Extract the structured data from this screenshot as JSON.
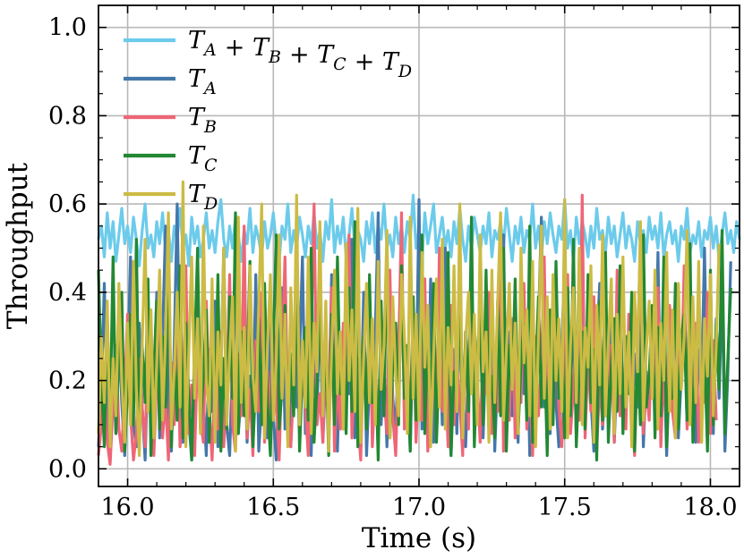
{
  "chart_data": {
    "type": "line",
    "title": "",
    "xlabel": "Time (s)",
    "ylabel": "Throughput",
    "xlim": [
      15.9,
      18.1
    ],
    "ylim": [
      -0.04,
      1.05
    ],
    "xticks": [
      16.0,
      16.5,
      17.0,
      17.5,
      18.0
    ],
    "xtick_labels": [
      "16.0",
      "16.5",
      "17.0",
      "17.5",
      "18.0"
    ],
    "yticks": [
      0.0,
      0.2,
      0.4,
      0.6,
      0.8,
      1.0
    ],
    "ytick_labels": [
      "0.0",
      "0.2",
      "0.4",
      "0.6",
      "0.8",
      "1.0"
    ],
    "grid": true,
    "legend_position": "top-left",
    "sample_step": 0.01,
    "series": [
      {
        "name": "T_A + T_B + T_C + T_D",
        "legend": {
          "base": [
            "T",
            "+ T",
            "+ T",
            "+ T"
          ],
          "subs": [
            "A",
            "B",
            "C",
            "D"
          ]
        },
        "color": "#6CCBEB",
        "x_start": 15.9,
        "values": [
          0.52,
          0.55,
          0.48,
          0.58,
          0.5,
          0.56,
          0.47,
          0.53,
          0.59,
          0.51,
          0.55,
          0.49,
          0.57,
          0.52,
          0.46,
          0.54,
          0.6,
          0.5,
          0.53,
          0.48,
          0.56,
          0.51,
          0.58,
          0.49,
          0.54,
          0.47,
          0.55,
          0.52,
          0.59,
          0.5,
          0.53,
          0.46,
          0.57,
          0.51,
          0.55,
          0.48,
          0.52,
          0.58,
          0.5,
          0.54,
          0.49,
          0.56,
          0.61,
          0.52,
          0.48,
          0.55,
          0.5,
          0.57,
          0.53,
          0.47,
          0.54,
          0.51,
          0.59,
          0.49,
          0.55,
          0.52,
          0.48,
          0.56,
          0.5,
          0.53,
          0.58,
          0.51,
          0.47,
          0.55,
          0.52,
          0.6,
          0.49,
          0.54,
          0.5,
          0.57,
          0.53,
          0.48,
          0.55,
          0.51,
          0.58,
          0.5,
          0.54,
          0.47,
          0.56,
          0.52,
          0.61,
          0.49,
          0.55,
          0.51,
          0.57,
          0.48,
          0.53,
          0.59,
          0.5,
          0.54,
          0.52,
          0.47,
          0.56,
          0.51,
          0.58,
          0.49,
          0.55,
          0.52,
          0.6,
          0.5,
          0.53,
          0.48,
          0.57,
          0.51,
          0.55,
          0.49,
          0.56,
          0.52,
          0.62,
          0.5,
          0.54,
          0.47,
          0.58,
          0.51,
          0.55,
          0.6,
          0.49,
          0.53,
          0.57,
          0.5,
          0.54,
          0.48,
          0.56,
          0.51,
          0.59,
          0.52,
          0.47,
          0.55,
          0.5,
          0.57,
          0.53,
          0.49,
          0.55,
          0.51,
          0.58,
          0.48,
          0.54,
          0.52,
          0.56,
          0.5,
          0.59,
          0.53,
          0.47,
          0.55,
          0.51,
          0.57,
          0.49,
          0.54,
          0.52,
          0.6,
          0.5,
          0.55,
          0.48,
          0.56,
          0.51,
          0.58,
          0.53,
          0.49,
          0.55,
          0.52,
          0.61,
          0.5,
          0.54,
          0.47,
          0.57,
          0.51,
          0.56,
          0.53,
          0.48,
          0.55,
          0.5,
          0.59,
          0.52,
          0.54,
          0.49,
          0.57,
          0.51,
          0.55,
          0.48,
          0.53,
          0.58,
          0.5,
          0.55,
          0.52,
          0.47,
          0.56,
          0.51,
          0.54,
          0.49,
          0.57,
          0.52,
          0.55,
          0.5,
          0.58,
          0.48,
          0.53,
          0.56,
          0.51,
          0.54,
          0.47,
          0.55,
          0.52,
          0.59,
          0.49,
          0.53,
          0.51,
          0.56,
          0.48,
          0.54,
          0.52,
          0.57,
          0.5,
          0.55,
          0.47,
          0.53,
          0.58,
          0.51,
          0.54,
          0.49,
          0.56,
          0.52
        ]
      },
      {
        "name": "T_A",
        "legend": {
          "base": [
            "T"
          ],
          "subs": [
            "A"
          ]
        },
        "color": "#4477AA",
        "x_start": 15.9,
        "values": [
          0.05,
          0.18,
          0.42,
          0.12,
          0.02,
          0.25,
          0.08,
          0.31,
          0.15,
          0.03,
          0.22,
          0.48,
          0.1,
          0.05,
          0.33,
          0.14,
          0.02,
          0.26,
          0.09,
          0.19,
          0.4,
          0.07,
          0.3,
          0.55,
          0.12,
          0.04,
          0.28,
          0.6,
          0.18,
          0.06,
          0.35,
          0.11,
          0.02,
          0.22,
          0.45,
          0.09,
          0.16,
          0.03,
          0.27,
          0.13,
          0.38,
          0.05,
          0.2,
          0.5,
          0.1,
          0.03,
          0.24,
          0.42,
          0.08,
          0.17,
          0.32,
          0.06,
          0.21,
          0.11,
          0.44,
          0.04,
          0.15,
          0.29,
          0.07,
          0.36,
          0.12,
          0.02,
          0.23,
          0.41,
          0.09,
          0.18,
          0.05,
          0.33,
          0.14,
          0.26,
          0.48,
          0.08,
          0.19,
          0.03,
          0.3,
          0.12,
          0.39,
          0.06,
          0.22,
          0.1,
          0.44,
          0.15,
          0.04,
          0.28,
          0.09,
          0.35,
          0.17,
          0.52,
          0.07,
          0.25,
          0.11,
          0.4,
          0.03,
          0.2,
          0.13,
          0.31,
          0.58,
          0.1,
          0.24,
          0.05,
          0.37,
          0.16,
          0.08,
          0.29,
          0.46,
          0.12,
          0.21,
          0.04,
          0.34,
          0.15,
          0.61,
          0.09,
          0.26,
          0.13,
          0.43,
          0.06,
          0.19,
          0.32,
          0.1,
          0.5,
          0.14,
          0.03,
          0.27,
          0.08,
          0.38,
          0.18,
          0.05,
          0.24,
          0.45,
          0.11,
          0.2,
          0.35,
          0.07,
          0.29,
          0.13,
          0.41,
          0.04,
          0.22,
          0.16,
          0.53,
          0.09,
          0.31,
          0.12,
          0.26,
          0.06,
          0.44,
          0.17,
          0.36,
          0.03,
          0.21,
          0.1,
          0.33,
          0.57,
          0.14,
          0.25,
          0.08,
          0.39,
          0.15,
          0.05,
          0.28,
          0.47,
          0.12,
          0.19,
          0.34,
          0.07,
          0.24,
          0.51,
          0.1,
          0.3,
          0.16,
          0.04,
          0.27,
          0.42,
          0.09,
          0.2,
          0.13,
          0.36,
          0.06,
          0.23,
          0.45,
          0.11,
          0.18,
          0.31,
          0.08,
          0.26,
          0.14,
          0.4,
          0.05,
          0.22,
          0.12,
          0.35,
          0.17,
          0.49,
          0.09,
          0.28,
          0.03,
          0.24,
          0.15,
          0.38,
          0.07,
          0.21,
          0.32,
          0.1,
          0.44,
          0.13,
          0.06,
          0.27,
          0.19,
          0.5,
          0.11,
          0.25,
          0.08,
          0.34,
          0.16,
          0.42,
          0.04,
          0.22,
          0.47
        ]
      },
      {
        "name": "T_B",
        "legend": {
          "base": [
            "T"
          ],
          "subs": [
            "B"
          ]
        },
        "color": "#EE6677",
        "x_start": 15.9,
        "values": [
          0.03,
          0.1,
          0.22,
          0.06,
          0.01,
          0.15,
          0.28,
          0.09,
          0.04,
          0.18,
          0.35,
          0.12,
          0.02,
          0.08,
          0.25,
          0.14,
          0.05,
          0.3,
          0.11,
          0.03,
          0.2,
          0.42,
          0.07,
          0.16,
          0.02,
          0.24,
          0.1,
          0.33,
          0.05,
          0.13,
          0.46,
          0.08,
          0.19,
          0.03,
          0.27,
          0.11,
          0.06,
          0.38,
          0.14,
          0.02,
          0.21,
          0.09,
          0.31,
          0.05,
          0.17,
          0.44,
          0.1,
          0.04,
          0.26,
          0.12,
          0.55,
          0.07,
          0.18,
          0.03,
          0.29,
          0.13,
          0.4,
          0.06,
          0.22,
          0.09,
          0.34,
          0.15,
          0.02,
          0.25,
          0.48,
          0.11,
          0.05,
          0.19,
          0.36,
          0.08,
          0.23,
          0.14,
          0.03,
          0.3,
          0.6,
          0.1,
          0.17,
          0.06,
          0.28,
          0.12,
          0.41,
          0.04,
          0.2,
          0.09,
          0.33,
          0.15,
          0.53,
          0.07,
          0.24,
          0.11,
          0.02,
          0.27,
          0.13,
          0.39,
          0.05,
          0.21,
          0.1,
          0.32,
          0.16,
          0.08,
          0.45,
          0.12,
          0.03,
          0.26,
          0.58,
          0.09,
          0.19,
          0.14,
          0.35,
          0.06,
          0.23,
          0.11,
          0.43,
          0.04,
          0.18,
          0.29,
          0.08,
          0.5,
          0.13,
          0.22,
          0.05,
          0.37,
          0.1,
          0.25,
          0.15,
          0.03,
          0.31,
          0.09,
          0.47,
          0.12,
          0.2,
          0.06,
          0.28,
          0.17,
          0.4,
          0.08,
          0.24,
          0.13,
          0.56,
          0.04,
          0.21,
          0.11,
          0.34,
          0.07,
          0.26,
          0.15,
          0.42,
          0.09,
          0.19,
          0.03,
          0.3,
          0.12,
          0.23,
          0.48,
          0.06,
          0.27,
          0.1,
          0.36,
          0.14,
          0.05,
          0.22,
          0.44,
          0.08,
          0.18,
          0.31,
          0.11,
          0.62,
          0.07,
          0.25,
          0.13,
          0.39,
          0.04,
          0.2,
          0.1,
          0.33,
          0.16,
          0.28,
          0.06,
          0.45,
          0.12,
          0.21,
          0.09,
          0.35,
          0.14,
          0.03,
          0.26,
          0.52,
          0.08,
          0.19,
          0.11,
          0.3,
          0.15,
          0.41,
          0.05,
          0.23,
          0.1,
          0.37,
          0.13,
          0.07,
          0.27,
          0.18,
          0.46,
          0.09,
          0.24,
          0.12,
          0.33,
          0.06,
          0.21,
          0.15,
          0.4,
          0.08,
          0.29,
          0.11
        ]
      },
      {
        "name": "T_C",
        "legend": {
          "base": [
            "T"
          ],
          "subs": [
            "C"
          ]
        },
        "color": "#228833",
        "x_start": 15.9,
        "values": [
          0.45,
          0.2,
          0.05,
          0.32,
          0.12,
          0.48,
          0.08,
          0.26,
          0.4,
          0.04,
          0.18,
          0.35,
          0.1,
          0.52,
          0.06,
          0.28,
          0.15,
          0.43,
          0.03,
          0.22,
          0.38,
          0.09,
          0.3,
          0.14,
          0.55,
          0.05,
          0.24,
          0.11,
          0.46,
          0.07,
          0.33,
          0.17,
          0.02,
          0.27,
          0.5,
          0.1,
          0.21,
          0.36,
          0.06,
          0.29,
          0.13,
          0.44,
          0.04,
          0.25,
          0.09,
          0.39,
          0.16,
          0.58,
          0.08,
          0.31,
          0.12,
          0.23,
          0.47,
          0.05,
          0.2,
          0.34,
          0.1,
          0.42,
          0.15,
          0.03,
          0.28,
          0.53,
          0.09,
          0.18,
          0.37,
          0.07,
          0.26,
          0.12,
          0.45,
          0.04,
          0.22,
          0.32,
          0.11,
          0.5,
          0.06,
          0.19,
          0.4,
          0.14,
          0.27,
          0.03,
          0.35,
          0.1,
          0.48,
          0.17,
          0.24,
          0.08,
          0.41,
          0.13,
          0.56,
          0.05,
          0.21,
          0.3,
          0.09,
          0.44,
          0.15,
          0.26,
          0.02,
          0.38,
          0.12,
          0.51,
          0.07,
          0.23,
          0.33,
          0.1,
          0.46,
          0.16,
          0.28,
          0.04,
          0.39,
          0.11,
          0.2,
          0.53,
          0.08,
          0.3,
          0.14,
          0.42,
          0.06,
          0.25,
          0.35,
          0.12,
          0.49,
          0.03,
          0.22,
          0.17,
          0.4,
          0.09,
          0.31,
          0.13,
          0.57,
          0.05,
          0.26,
          0.36,
          0.1,
          0.45,
          0.15,
          0.21,
          0.07,
          0.38,
          0.12,
          0.5,
          0.04,
          0.28,
          0.18,
          0.43,
          0.08,
          0.24,
          0.33,
          0.11,
          0.55,
          0.06,
          0.2,
          0.39,
          0.14,
          0.29,
          0.03,
          0.36,
          0.1,
          0.47,
          0.16,
          0.25,
          0.07,
          0.41,
          0.12,
          0.52,
          0.05,
          0.22,
          0.31,
          0.09,
          0.44,
          0.15,
          0.27,
          0.02,
          0.38,
          0.11,
          0.49,
          0.06,
          0.23,
          0.34,
          0.13,
          0.46,
          0.08,
          0.3,
          0.17,
          0.4,
          0.04,
          0.26,
          0.1,
          0.53,
          0.14,
          0.21,
          0.37,
          0.07,
          0.32,
          0.12,
          0.48,
          0.05,
          0.24,
          0.16,
          0.42,
          0.09,
          0.29,
          0.35,
          0.11,
          0.51,
          0.06,
          0.22,
          0.39,
          0.14,
          0.27,
          0.04,
          0.45,
          0.1,
          0.33,
          0.18,
          0.54,
          0.08,
          0.25,
          0.41
        ]
      },
      {
        "name": "T_D",
        "legend": {
          "base": [
            "T"
          ],
          "subs": [
            "D"
          ]
        },
        "color": "#CCBB44",
        "x_start": 15.9,
        "values": [
          0.08,
          0.3,
          0.15,
          0.38,
          0.05,
          0.25,
          0.12,
          0.42,
          0.2,
          0.06,
          0.33,
          0.1,
          0.47,
          0.18,
          0.03,
          0.28,
          0.52,
          0.13,
          0.36,
          0.07,
          0.24,
          0.45,
          0.11,
          0.3,
          0.58,
          0.09,
          0.22,
          0.4,
          0.14,
          0.65,
          0.05,
          0.27,
          0.48,
          0.16,
          0.34,
          0.08,
          0.55,
          0.2,
          0.12,
          0.43,
          0.06,
          0.31,
          0.19,
          0.5,
          0.1,
          0.26,
          0.39,
          0.04,
          0.57,
          0.15,
          0.32,
          0.09,
          0.46,
          0.21,
          0.13,
          0.37,
          0.6,
          0.07,
          0.28,
          0.44,
          0.11,
          0.24,
          0.53,
          0.16,
          0.35,
          0.05,
          0.41,
          0.19,
          0.62,
          0.1,
          0.29,
          0.14,
          0.48,
          0.08,
          0.33,
          0.22,
          0.56,
          0.12,
          0.38,
          0.04,
          0.27,
          0.45,
          0.17,
          0.31,
          0.09,
          0.51,
          0.2,
          0.36,
          0.13,
          0.59,
          0.06,
          0.25,
          0.42,
          0.15,
          0.34,
          0.1,
          0.47,
          0.18,
          0.28,
          0.54,
          0.07,
          0.39,
          0.21,
          0.12,
          0.44,
          0.3,
          0.08,
          0.57,
          0.16,
          0.35,
          0.11,
          0.49,
          0.23,
          0.37,
          0.05,
          0.26,
          0.43,
          0.14,
          0.52,
          0.09,
          0.32,
          0.19,
          0.46,
          0.13,
          0.6,
          0.07,
          0.29,
          0.4,
          0.17,
          0.35,
          0.1,
          0.53,
          0.22,
          0.31,
          0.06,
          0.45,
          0.15,
          0.38,
          0.58,
          0.11,
          0.27,
          0.42,
          0.18,
          0.33,
          0.08,
          0.5,
          0.24,
          0.36,
          0.12,
          0.47,
          0.05,
          0.3,
          0.55,
          0.16,
          0.39,
          0.09,
          0.44,
          0.2,
          0.34,
          0.13,
          0.61,
          0.07,
          0.28,
          0.41,
          0.15,
          0.5,
          0.1,
          0.32,
          0.23,
          0.46,
          0.06,
          0.37,
          0.19,
          0.53,
          0.12,
          0.29,
          0.43,
          0.08,
          0.35,
          0.17,
          0.48,
          0.14,
          0.31,
          0.05,
          0.4,
          0.22,
          0.56,
          0.11,
          0.27,
          0.38,
          0.16,
          0.45,
          0.09,
          0.33,
          0.2,
          0.49,
          0.13,
          0.36,
          0.07,
          0.42,
          0.18,
          0.3,
          0.54,
          0.1,
          0.39,
          0.15,
          0.47,
          0.06,
          0.34,
          0.21,
          0.44,
          0.12,
          0.28,
          0.51
        ]
      }
    ]
  }
}
